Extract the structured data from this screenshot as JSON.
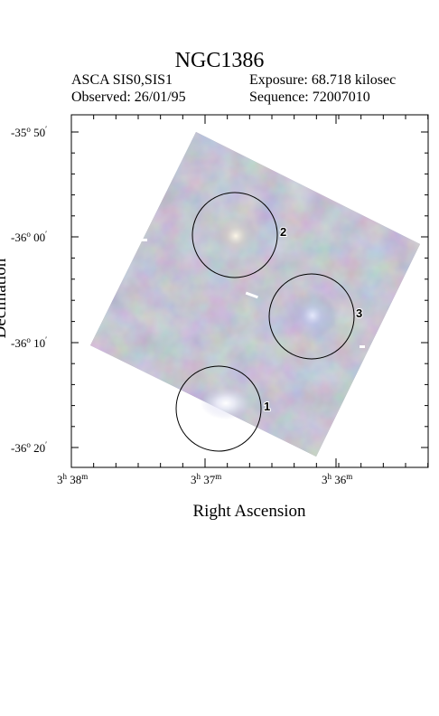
{
  "header": {
    "title": "NGC1386",
    "instrument": "ASCA SIS0,SIS1",
    "observed": "Observed: 26/01/95",
    "exposure": "Exposure: 68.718 kilosec",
    "sequence": "Sequence: 72007010"
  },
  "axes": {
    "xlabel": "Right Ascension",
    "ylabel": "Declination",
    "dec_ticks": [
      {
        "deg": "-35",
        "min": "50"
      },
      {
        "deg": "-36",
        "min": "00"
      },
      {
        "deg": "-36",
        "min": "10"
      },
      {
        "deg": "-36",
        "min": "20"
      }
    ],
    "ra_ticks": [
      {
        "h": "3",
        "m": "38"
      },
      {
        "h": "3",
        "m": "37"
      },
      {
        "h": "3",
        "m": "36"
      }
    ]
  },
  "sources": [
    {
      "label": "1"
    },
    {
      "label": "2"
    },
    {
      "label": "3"
    }
  ],
  "colors": {
    "image_base": "#8c8ca4",
    "image_light": "#b4b4c8",
    "bright_spot": "#ffffff"
  }
}
